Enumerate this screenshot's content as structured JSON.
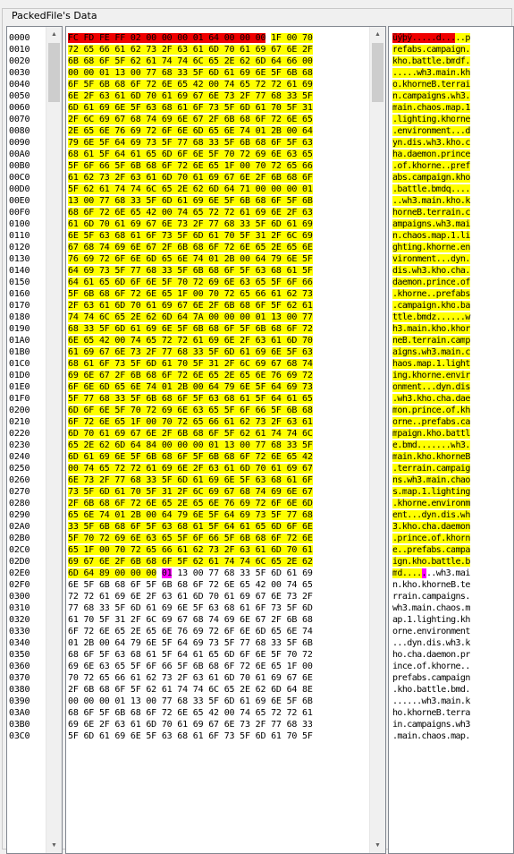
{
  "group_title": "PackedFile's Data",
  "offsets": [
    "0000",
    "0010",
    "0020",
    "0030",
    "0040",
    "0050",
    "0060",
    "0070",
    "0080",
    "0090",
    "00A0",
    "00B0",
    "00C0",
    "00D0",
    "00E0",
    "00F0",
    "0100",
    "0110",
    "0120",
    "0130",
    "0140",
    "0150",
    "0160",
    "0170",
    "0180",
    "0190",
    "01A0",
    "01B0",
    "01C0",
    "01D0",
    "01E0",
    "01F0",
    "0200",
    "0210",
    "0220",
    "0230",
    "0240",
    "0250",
    "0260",
    "0270",
    "0280",
    "0290",
    "02A0",
    "02B0",
    "02C0",
    "02D0",
    "02E0",
    "02F0",
    "0300",
    "0310",
    "0320",
    "0330",
    "0340",
    "0350",
    "0360",
    "0370",
    "0380",
    "0390",
    "03A0",
    "03B0",
    "03C0"
  ],
  "hex_rows": [
    "FC FD FE FF 02 00 00 00 01 64 00 00 00 1F 00 70",
    "72 65 66 61 62 73 2F 63 61 6D 70 61 69 67 6E 2F",
    "6B 68 6F 5F 62 61 74 74 6C 65 2E 62 6D 64 66 00",
    "00 00 01 13 00 77 68 33 5F 6D 61 69 6E 5F 6B 68",
    "6F 5F 6B 68 6F 72 6E 65 42 00 74 65 72 72 61 69",
    "6E 2F 63 61 6D 70 61 69 67 6E 73 2F 77 68 33 5F",
    "6D 61 69 6E 5F 63 68 61 6F 73 5F 6D 61 70 5F 31",
    "2F 6C 69 67 68 74 69 6E 67 2F 6B 68 6F 72 6E 65",
    "2E 65 6E 76 69 72 6F 6E 6D 65 6E 74 01 2B 00 64",
    "79 6E 5F 64 69 73 5F 77 68 33 5F 6B 68 6F 5F 63",
    "68 61 5F 64 61 65 6D 6F 6E 5F 70 72 69 6E 63 65",
    "5F 6F 66 5F 6B 68 6F 72 6E 65 1F 00 70 72 65 66",
    "61 62 73 2F 63 61 6D 70 61 69 67 6E 2F 6B 68 6F",
    "5F 62 61 74 74 6C 65 2E 62 6D 64 71 00 00 00 01",
    "13 00 77 68 33 5F 6D 61 69 6E 5F 6B 68 6F 5F 6B",
    "68 6F 72 6E 65 42 00 74 65 72 72 61 69 6E 2F 63",
    "61 6D 70 61 69 67 6E 73 2F 77 68 33 5F 6D 61 69",
    "6E 5F 63 68 61 6F 73 5F 6D 61 70 5F 31 2F 6C 69",
    "67 68 74 69 6E 67 2F 6B 68 6F 72 6E 65 2E 65 6E",
    "76 69 72 6F 6E 6D 65 6E 74 01 2B 00 64 79 6E 5F",
    "64 69 73 5F 77 68 33 5F 6B 68 6F 5F 63 68 61 5F",
    "64 61 65 6D 6F 6E 5F 70 72 69 6E 63 65 5F 6F 66",
    "5F 6B 68 6F 72 6E 65 1F 00 70 72 65 66 61 62 73",
    "2F 63 61 6D 70 61 69 67 6E 2F 6B 68 6F 5F 62 61",
    "74 74 6C 65 2E 62 6D 64 7A 00 00 00 01 13 00 77",
    "68 33 5F 6D 61 69 6E 5F 6B 68 6F 5F 6B 68 6F 72",
    "6E 65 42 00 74 65 72 72 61 69 6E 2F 63 61 6D 70",
    "61 69 67 6E 73 2F 77 68 33 5F 6D 61 69 6E 5F 63",
    "68 61 6F 73 5F 6D 61 70 5F 31 2F 6C 69 67 68 74",
    "69 6E 67 2F 6B 68 6F 72 6E 65 2E 65 6E 76 69 72",
    "6F 6E 6D 65 6E 74 01 2B 00 64 79 6E 5F 64 69 73",
    "5F 77 68 33 5F 6B 68 6F 5F 63 68 61 5F 64 61 65",
    "6D 6F 6E 5F 70 72 69 6E 63 65 5F 6F 66 5F 6B 68",
    "6F 72 6E 65 1F 00 70 72 65 66 61 62 73 2F 63 61",
    "6D 70 61 69 67 6E 2F 6B 68 6F 5F 62 61 74 74 6C",
    "65 2E 62 6D 64 84 00 00 00 01 13 00 77 68 33 5F",
    "6D 61 69 6E 5F 6B 68 6F 5F 6B 68 6F 72 6E 65 42",
    "00 74 65 72 72 61 69 6E 2F 63 61 6D 70 61 69 67",
    "6E 73 2F 77 68 33 5F 6D 61 69 6E 5F 63 68 61 6F",
    "73 5F 6D 61 70 5F 31 2F 6C 69 67 68 74 69 6E 67",
    "2F 6B 68 6F 72 6E 65 2E 65 6E 76 69 72 6F 6E 6D",
    "65 6E 74 01 2B 00 64 79 6E 5F 64 69 73 5F 77 68",
    "33 5F 6B 68 6F 5F 63 68 61 5F 64 61 65 6D 6F 6E",
    "5F 70 72 69 6E 63 65 5F 6F 66 5F 6B 68 6F 72 6E",
    "65 1F 00 70 72 65 66 61 62 73 2F 63 61 6D 70 61",
    "69 67 6E 2F 6B 68 6F 5F 62 61 74 74 6C 65 2E 62",
    "6D 64 89 00 00 00 01 13 00 77 68 33 5F 6D 61 69",
    "6E 5F 6B 68 6F 5F 6B 68 6F 72 6E 65 42 00 74 65",
    "72 72 61 69 6E 2F 63 61 6D 70 61 69 67 6E 73 2F",
    "77 68 33 5F 6D 61 69 6E 5F 63 68 61 6F 73 5F 6D",
    "61 70 5F 31 2F 6C 69 67 68 74 69 6E 67 2F 6B 68",
    "6F 72 6E 65 2E 65 6E 76 69 72 6F 6E 6D 65 6E 74",
    "01 2B 00 64 79 6E 5F 64 69 73 5F 77 68 33 5F 6B",
    "68 6F 5F 63 68 61 5F 64 61 65 6D 6F 6E 5F 70 72",
    "69 6E 63 65 5F 6F 66 5F 6B 68 6F 72 6E 65 1F 00",
    "70 72 65 66 61 62 73 2F 63 61 6D 70 61 69 67 6E",
    "2F 6B 68 6F 5F 62 61 74 74 6C 65 2E 62 6D 64 8E",
    "00 00 00 01 13 00 77 68 33 5F 6D 61 69 6E 5F 6B",
    "68 6F 5F 6B 68 6F 72 6E 65 42 00 74 65 72 72 61",
    "69 6E 2F 63 61 6D 70 61 69 67 6E 73 2F 77 68 33",
    "5F 6D 61 69 6E 5F 63 68 61 6F 73 5F 6D 61 70 5F"
  ],
  "ascii_rows": [
    "üýþÿ.....d.....p",
    "refabs.campaign.",
    "kho.battle.bmdf.",
    ".....wh3.main.kh",
    "o.khorneB.terrai",
    "n.campaigns.wh3.",
    "main.chaos.map.1",
    ".lighting.khorne",
    ".environment...d",
    "yn.dis.wh3.kho.c",
    "ha.daemon.prince",
    ".of.khorne..pref",
    "abs.campaign.kho",
    ".battle.bmdq....",
    "..wh3.main.kho.k",
    "horneB.terrain.c",
    "ampaigns.wh3.mai",
    "n.chaos.map.1.li",
    "ghting.khorne.en",
    "vironment...dyn.",
    "dis.wh3.kho.cha.",
    "daemon.prince.of",
    ".khorne..prefabs",
    ".campaign.kho.ba",
    "ttle.bmdz......w",
    "h3.main.kho.khor",
    "neB.terrain.camp",
    "aigns.wh3.main.c",
    "haos.map.1.light",
    "ing.khorne.envir",
    "onment...dyn.dis",
    ".wh3.kho.cha.dae",
    "mon.prince.of.kh",
    "orne..prefabs.ca",
    "mpaign.kho.battl",
    "e.bmd.......wh3.",
    "main.kho.khorneB",
    ".terrain.campaig",
    "ns.wh3.main.chao",
    "s.map.1.lighting",
    ".khorne.environm",
    "ent...dyn.dis.wh",
    "3.kho.cha.daemon",
    ".prince.of.khorn",
    "e..prefabs.campa",
    "ign.kho.battle.b",
    "md.......wh3.mai",
    "n.kho.khorneB.te",
    "rrain.campaigns.",
    "wh3.main.chaos.m",
    "ap.1.lighting.kh",
    "orne.environment",
    "...dyn.dis.wh3.k",
    "ho.cha.daemon.pr",
    "ince.of.khorne..",
    "prefabs.campaign",
    ".kho.battle.bmd.",
    "......wh3.main.k",
    "ho.khorneB.terra",
    "in.campaigns.wh3",
    ".main.chaos.map."
  ],
  "colors": {
    "red": "#ef0000",
    "yellow": "#ffff00",
    "magenta": "#ff00ff"
  },
  "highlight": {
    "red_bytes": 13,
    "yellow_end_byte": 742,
    "magenta_byte": 742
  },
  "icons": {
    "scroll_up": "triangle-up-icon",
    "scroll_down": "triangle-down-icon"
  }
}
